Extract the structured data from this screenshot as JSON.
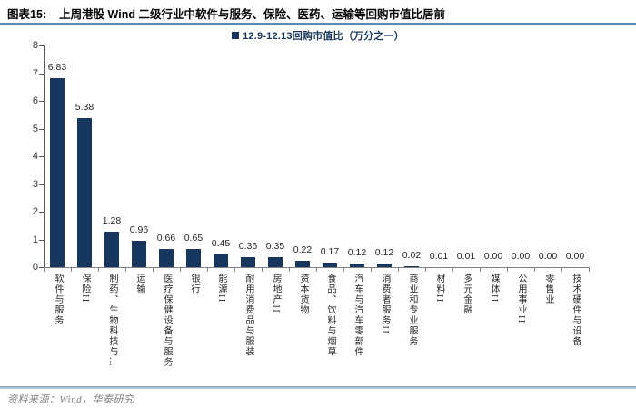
{
  "page": {
    "figure_label": "图表15:",
    "figure_title": "上周港股 Wind 二级行业中软件与服务、保险、医药、运输等回购市值比居前",
    "source_note": "资料来源：Wind，华泰研究"
  },
  "chart_data": {
    "type": "bar",
    "title": "上周港股 Wind 二级行业中软件与服务、保险、医药、运输等回购市值比居前",
    "legend_entries": [
      "12.9-12.13回购市值比（万分之一）"
    ],
    "legend_position": "top-center",
    "categories": [
      "软件与服务",
      "保险II",
      "制药、生物科技与…",
      "运输",
      "医疗保健设备与服务",
      "银行",
      "能源II",
      "耐用消费品与服装",
      "房地产II",
      "资本货物",
      "食品、饮料与烟草",
      "汽车与汽车零部件",
      "消费者服务II",
      "商业和专业服务",
      "材料II",
      "多元金融",
      "媒体II",
      "公用事业II",
      "零售业",
      "技术硬件与设备"
    ],
    "values": [
      6.83,
      5.38,
      1.28,
      0.96,
      0.66,
      0.65,
      0.45,
      0.36,
      0.35,
      0.22,
      0.17,
      0.12,
      0.12,
      0.02,
      0.01,
      0.01,
      0.0,
      0.0,
      0.0,
      0.0
    ],
    "value_labels": [
      "6.83",
      "5.38",
      "1.28",
      "0.96",
      "0.66",
      "0.65",
      "0.45",
      "0.36",
      "0.35",
      "0.22",
      "0.17",
      "0.12",
      "0.12",
      "0.02",
      "0.01",
      "0.01",
      "0.00",
      "0.00",
      "0.00",
      "0.00"
    ],
    "ylabel": "",
    "xlabel": "",
    "ylim": [
      0,
      8
    ],
    "yticks": [
      0,
      1,
      2,
      3,
      4,
      5,
      6,
      7,
      8
    ],
    "grid": false,
    "bar_color": "#17375E"
  },
  "colors": {
    "bar": "#17375E",
    "legend_text": "#17375E",
    "title_rule": "#5c88b8",
    "footer_rule": "#aec2d3",
    "y_axis": "#595959",
    "x_axis": "#808080",
    "value_text": "#262626",
    "source_text": "#7f7f7f"
  }
}
